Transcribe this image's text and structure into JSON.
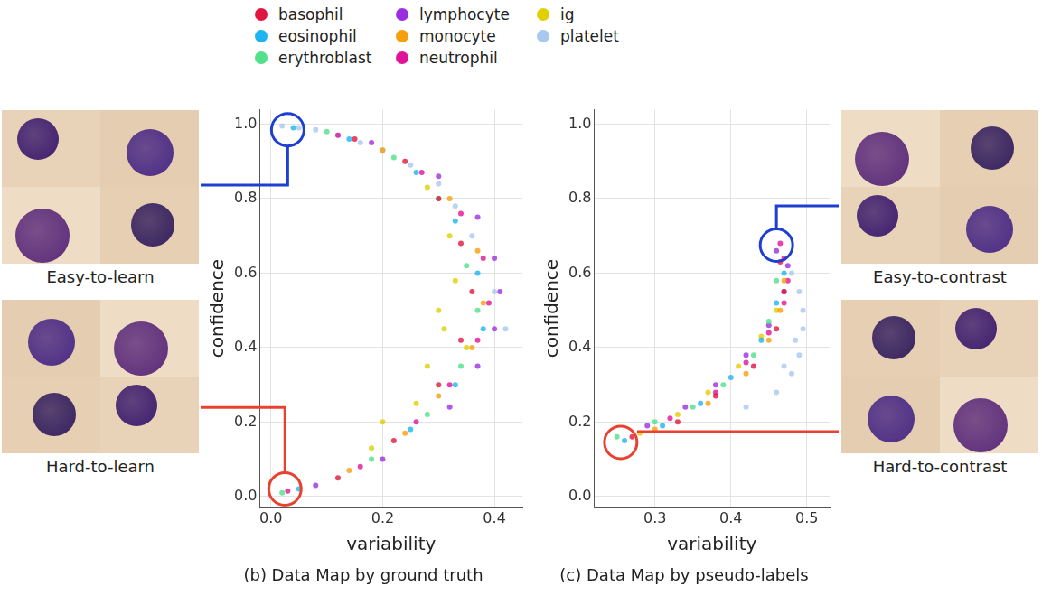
{
  "chart_data": [
    {
      "type": "scatter",
      "title": "(b) Data Map by ground truth",
      "x_label": "variability",
      "y_label": "confidence",
      "xlim": [
        -0.02,
        0.45
      ],
      "ylim": [
        -0.03,
        1.04
      ],
      "xticks": [
        {
          "value": 0,
          "label": "0.0"
        },
        0.2,
        0.4
      ],
      "yticks": [
        {
          "value": 0,
          "label": "0.0"
        },
        0.2,
        0.4,
        0.6,
        0.8,
        {
          "value": 1,
          "label": "1.0"
        }
      ],
      "grid": true,
      "legend": "top",
      "marker": "circle",
      "regions": [
        {
          "label": "Easy-to-learn",
          "x": 0.03,
          "y": 0.985,
          "color": "#1f3fd0"
        },
        {
          "label": "Hard-to-learn",
          "x": 0.025,
          "y": 0.02,
          "color": "#e8412f"
        }
      ],
      "series": [
        {
          "name": "basophil",
          "color": "#e0163f",
          "values": [
            [
              0.15,
              0.96
            ],
            [
              0.24,
              0.9
            ],
            [
              0.3,
              0.8
            ],
            [
              0.34,
              0.68
            ],
            [
              0.36,
              0.55
            ],
            [
              0.34,
              0.42
            ],
            [
              0.3,
              0.3
            ],
            [
              0.22,
              0.15
            ],
            [
              0.12,
              0.05
            ]
          ]
        },
        {
          "name": "eosinophil",
          "color": "#1eb4f0",
          "values": [
            [
              0.04,
              0.99
            ],
            [
              0.14,
              0.96
            ],
            [
              0.26,
              0.87
            ],
            [
              0.33,
              0.74
            ],
            [
              0.37,
              0.6
            ],
            [
              0.38,
              0.45
            ],
            [
              0.33,
              0.3
            ],
            [
              0.25,
              0.18
            ],
            [
              0.05,
              0.02
            ]
          ]
        },
        {
          "name": "erythroblast",
          "color": "#52e08a",
          "values": [
            [
              0.1,
              0.98
            ],
            [
              0.22,
              0.91
            ],
            [
              0.3,
              0.8
            ],
            [
              0.35,
              0.62
            ],
            [
              0.37,
              0.5
            ],
            [
              0.34,
              0.35
            ],
            [
              0.28,
              0.22
            ],
            [
              0.18,
              0.1
            ],
            [
              0.02,
              0.01
            ]
          ]
        },
        {
          "name": "lymphocyte",
          "color": "#9b2fe0",
          "values": [
            [
              0.18,
              0.95
            ],
            [
              0.3,
              0.86
            ],
            [
              0.37,
              0.75
            ],
            [
              0.4,
              0.64
            ],
            [
              0.41,
              0.55
            ],
            [
              0.4,
              0.45
            ],
            [
              0.37,
              0.35
            ],
            [
              0.32,
              0.24
            ],
            [
              0.2,
              0.1
            ],
            [
              0.08,
              0.03
            ]
          ]
        },
        {
          "name": "monocyte",
          "color": "#f5a00a",
          "values": [
            [
              0.2,
              0.93
            ],
            [
              0.32,
              0.8
            ],
            [
              0.37,
              0.66
            ],
            [
              0.38,
              0.52
            ],
            [
              0.36,
              0.4
            ],
            [
              0.3,
              0.27
            ],
            [
              0.24,
              0.17
            ],
            [
              0.14,
              0.07
            ]
          ]
        },
        {
          "name": "neutrophil",
          "color": "#e0149a",
          "values": [
            [
              0.12,
              0.97
            ],
            [
              0.27,
              0.87
            ],
            [
              0.34,
              0.76
            ],
            [
              0.38,
              0.64
            ],
            [
              0.39,
              0.52
            ],
            [
              0.37,
              0.42
            ],
            [
              0.32,
              0.3
            ],
            [
              0.26,
              0.2
            ],
            [
              0.16,
              0.08
            ],
            [
              0.03,
              0.015
            ]
          ]
        },
        {
          "name": "ig",
          "color": "#e0d000",
          "values": [
            [
              0.28,
              0.83
            ],
            [
              0.32,
              0.7
            ],
            [
              0.33,
              0.58
            ],
            [
              0.31,
              0.45
            ],
            [
              0.28,
              0.35
            ],
            [
              0.3,
              0.5
            ],
            [
              0.35,
              0.4
            ],
            [
              0.26,
              0.25
            ],
            [
              0.2,
              0.2
            ],
            [
              0.18,
              0.13
            ]
          ]
        },
        {
          "name": "platelet",
          "color": "#a9c8f0",
          "values": [
            [
              0.02,
              0.995
            ],
            [
              0.05,
              0.99
            ],
            [
              0.08,
              0.985
            ],
            [
              0.12,
              0.97
            ],
            [
              0.16,
              0.95
            ],
            [
              0.2,
              0.93
            ],
            [
              0.25,
              0.89
            ],
            [
              0.3,
              0.84
            ],
            [
              0.33,
              0.78
            ],
            [
              0.36,
              0.7
            ],
            [
              0.4,
              0.55
            ],
            [
              0.42,
              0.45
            ]
          ]
        }
      ]
    },
    {
      "type": "scatter",
      "title": "(c) Data Map by pseudo-labels",
      "x_label": "variability",
      "y_label": "confidence",
      "xlim": [
        0.22,
        0.53
      ],
      "ylim": [
        -0.03,
        1.04
      ],
      "xticks": [
        0.3,
        0.4,
        0.5
      ],
      "yticks": [
        {
          "value": 0,
          "label": "0.0"
        },
        0.2,
        0.4,
        0.6,
        0.8,
        {
          "value": 1,
          "label": "1.0"
        }
      ],
      "grid": true,
      "legend": "top",
      "marker": "circle",
      "regions": [
        {
          "label": "Easy-to-contrast",
          "x": 0.46,
          "y": 0.675,
          "color": "#1f3fd0"
        },
        {
          "label": "Hard-to-contrast",
          "x": 0.255,
          "y": 0.145,
          "color": "#e8412f"
        }
      ],
      "series": [
        {
          "name": "basophil",
          "color": "#e0163f",
          "values": [
            [
              0.27,
              0.16
            ],
            [
              0.33,
              0.2
            ],
            [
              0.38,
              0.27
            ],
            [
              0.43,
              0.35
            ],
            [
              0.46,
              0.45
            ],
            [
              0.47,
              0.55
            ],
            [
              0.465,
              0.63
            ]
          ]
        },
        {
          "name": "eosinophil",
          "color": "#1eb4f0",
          "values": [
            [
              0.26,
              0.15
            ],
            [
              0.31,
              0.19
            ],
            [
              0.36,
              0.25
            ],
            [
              0.4,
              0.32
            ],
            [
              0.44,
              0.42
            ],
            [
              0.46,
              0.52
            ],
            [
              0.47,
              0.6
            ]
          ]
        },
        {
          "name": "erythroblast",
          "color": "#52e08a",
          "values": [
            [
              0.25,
              0.16
            ],
            [
              0.3,
              0.2
            ],
            [
              0.35,
              0.24
            ],
            [
              0.39,
              0.3
            ],
            [
              0.43,
              0.38
            ],
            [
              0.45,
              0.47
            ],
            [
              0.46,
              0.58
            ]
          ]
        },
        {
          "name": "lymphocyte",
          "color": "#9b2fe0",
          "values": [
            [
              0.29,
              0.19
            ],
            [
              0.34,
              0.24
            ],
            [
              0.38,
              0.3
            ],
            [
              0.42,
              0.38
            ],
            [
              0.45,
              0.46
            ],
            [
              0.47,
              0.55
            ],
            [
              0.475,
              0.62
            ],
            [
              0.46,
              0.66
            ]
          ]
        },
        {
          "name": "monocyte",
          "color": "#f5a00a",
          "values": [
            [
              0.3,
              0.18
            ],
            [
              0.37,
              0.25
            ],
            [
              0.42,
              0.33
            ],
            [
              0.45,
              0.42
            ],
            [
              0.465,
              0.5
            ],
            [
              0.47,
              0.58
            ]
          ]
        },
        {
          "name": "neutrophil",
          "color": "#e0149a",
          "values": [
            [
              0.32,
              0.21
            ],
            [
              0.38,
              0.28
            ],
            [
              0.42,
              0.36
            ],
            [
              0.45,
              0.44
            ],
            [
              0.47,
              0.52
            ],
            [
              0.475,
              0.58
            ],
            [
              0.47,
              0.64
            ],
            [
              0.465,
              0.68
            ]
          ]
        },
        {
          "name": "ig",
          "color": "#e0d000",
          "values": [
            [
              0.28,
              0.17
            ],
            [
              0.33,
              0.22
            ],
            [
              0.37,
              0.28
            ],
            [
              0.41,
              0.35
            ],
            [
              0.44,
              0.43
            ],
            [
              0.46,
              0.5
            ]
          ]
        },
        {
          "name": "platelet",
          "color": "#a9c8f0",
          "values": [
            [
              0.42,
              0.24
            ],
            [
              0.46,
              0.28
            ],
            [
              0.48,
              0.33
            ],
            [
              0.49,
              0.38
            ],
            [
              0.495,
              0.45
            ],
            [
              0.495,
              0.5
            ],
            [
              0.49,
              0.55
            ],
            [
              0.48,
              0.6
            ],
            [
              0.47,
              0.35
            ],
            [
              0.485,
              0.42
            ]
          ]
        }
      ]
    }
  ]
}
